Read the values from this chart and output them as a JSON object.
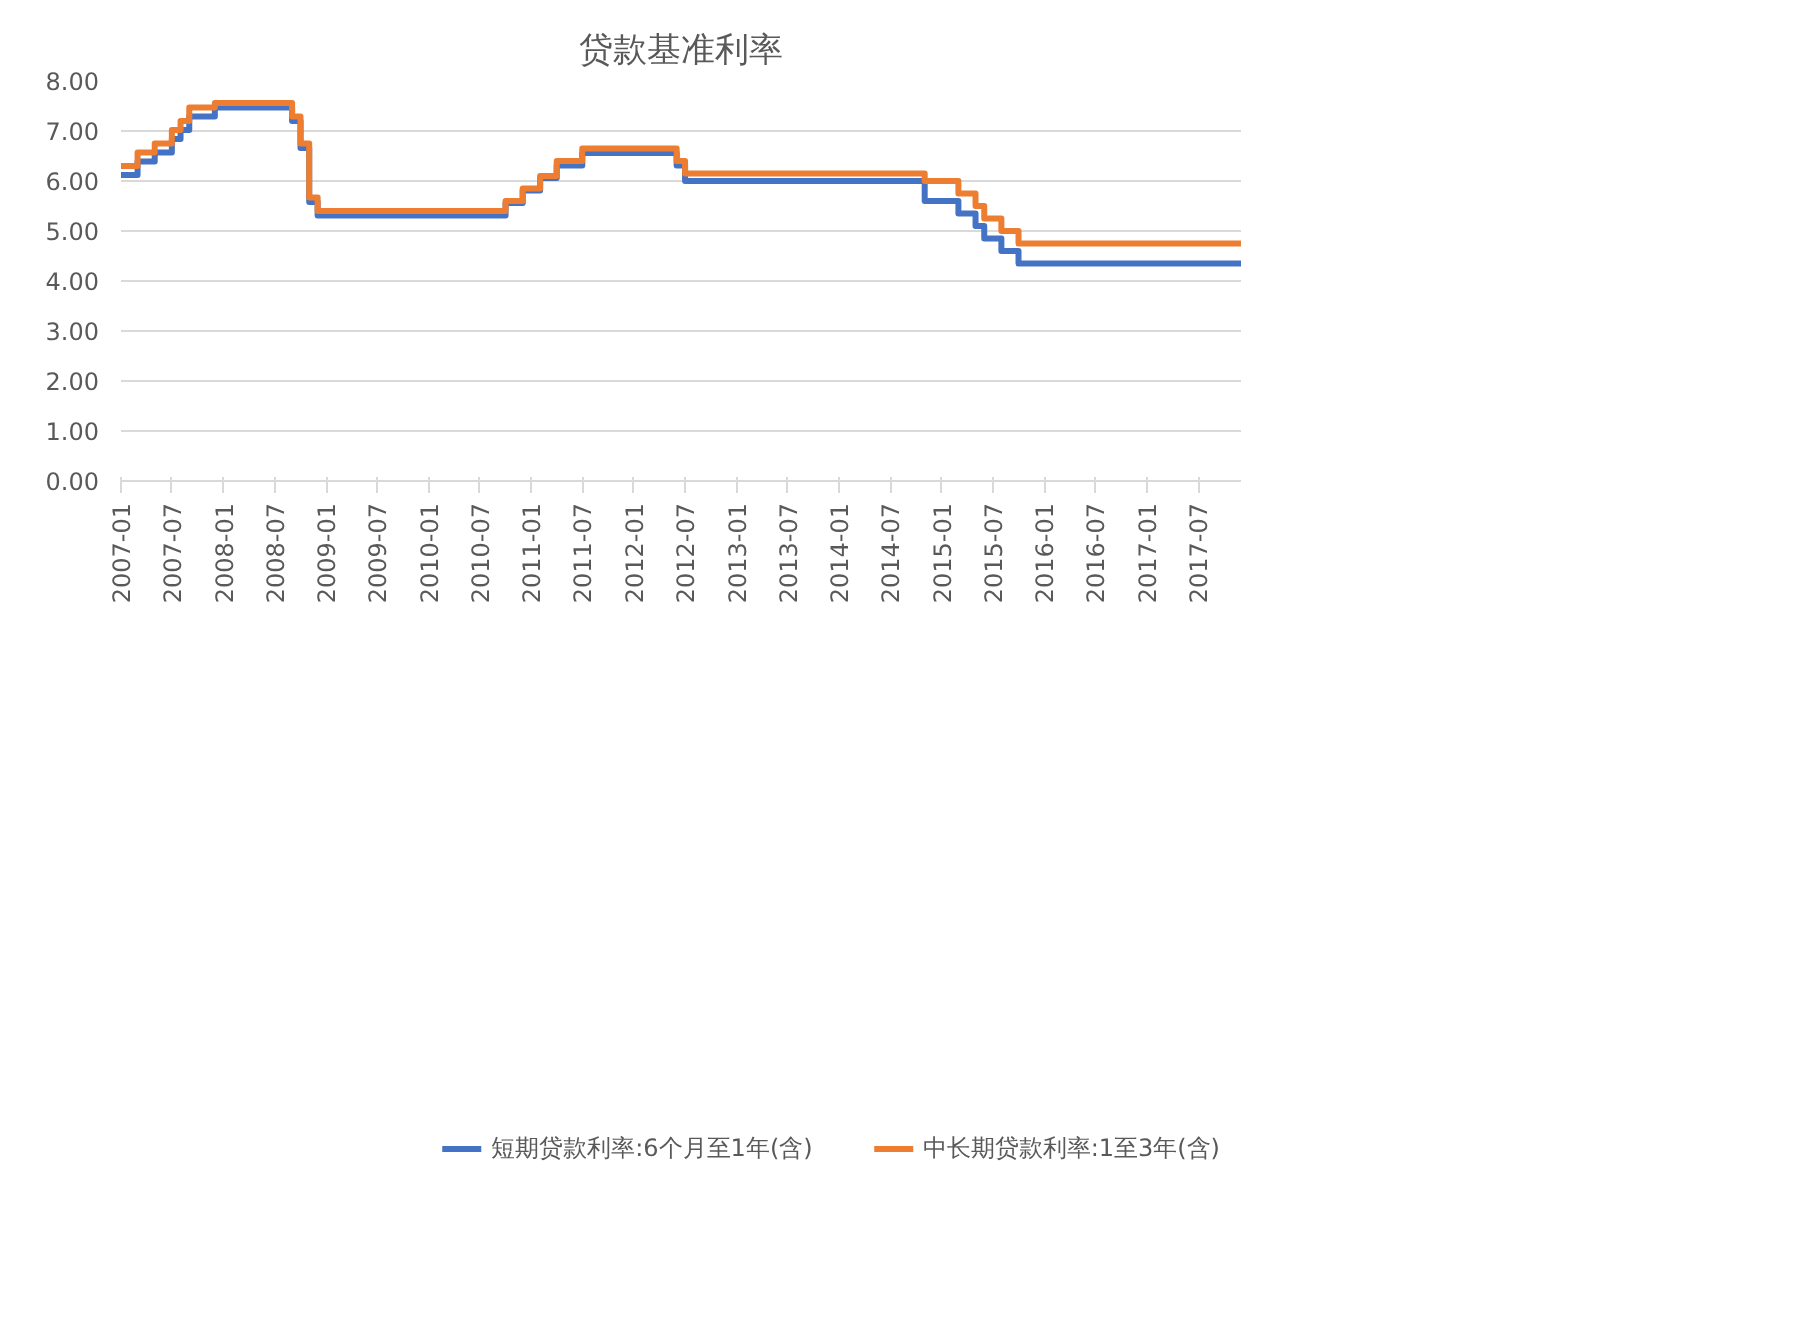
{
  "chart_data": {
    "type": "step",
    "title": "贷款基准利率",
    "series": [
      {
        "name": "短期贷款利率:6个月至1年(含)",
        "color": "#4472c4",
        "x": [
          "2007-01",
          "2007-03",
          "2007-05",
          "2007-07",
          "2007-08",
          "2007-09",
          "2007-12",
          "2008-09",
          "2008-10",
          "2008-11",
          "2008-12",
          "2010-10",
          "2010-12",
          "2011-02",
          "2011-04",
          "2011-07",
          "2012-06",
          "2012-07",
          "2014-11",
          "2015-03",
          "2015-05",
          "2015-06",
          "2015-08",
          "2015-10",
          "2017-12"
        ],
        "values": [
          6.12,
          6.39,
          6.57,
          6.84,
          7.02,
          7.29,
          7.47,
          7.2,
          6.66,
          5.58,
          5.31,
          5.56,
          5.81,
          6.06,
          6.31,
          6.56,
          6.31,
          6.0,
          5.6,
          5.35,
          5.1,
          4.85,
          4.6,
          4.35,
          4.35
        ]
      },
      {
        "name": "中长期贷款利率:1至3年(含)",
        "color": "#ed7d31",
        "x": [
          "2007-01",
          "2007-03",
          "2007-05",
          "2007-07",
          "2007-08",
          "2007-09",
          "2007-12",
          "2008-09",
          "2008-10",
          "2008-11",
          "2008-12",
          "2010-10",
          "2010-12",
          "2011-02",
          "2011-04",
          "2011-07",
          "2012-06",
          "2012-07",
          "2014-11",
          "2015-03",
          "2015-05",
          "2015-06",
          "2015-08",
          "2015-10",
          "2017-12"
        ],
        "values": [
          6.3,
          6.57,
          6.75,
          7.02,
          7.2,
          7.47,
          7.56,
          7.29,
          6.75,
          5.67,
          5.4,
          5.6,
          5.85,
          6.1,
          6.4,
          6.65,
          6.4,
          6.15,
          6.0,
          5.75,
          5.5,
          5.25,
          5.0,
          4.75,
          4.75
        ]
      }
    ],
    "xlim": [
      "2007-01",
      "2017-12"
    ],
    "xticks": [
      {
        "value": "2007-01",
        "label": "2007-01"
      },
      {
        "value": "2007-07",
        "label": "2007-07"
      },
      {
        "value": "2008-01",
        "label": "2008-01"
      },
      {
        "value": "2008-07",
        "label": "2008-07"
      },
      {
        "value": "2009-01",
        "label": "2009-01"
      },
      {
        "value": "2009-07",
        "label": "2009-07"
      },
      {
        "value": "2010-01",
        "label": "2010-01"
      },
      {
        "value": "2010-07",
        "label": "2010-07"
      },
      {
        "value": "2011-01",
        "label": "2011-01"
      },
      {
        "value": "2011-07",
        "label": "2011-07"
      },
      {
        "value": "2012-01",
        "label": "2012-01"
      },
      {
        "value": "2012-07",
        "label": "2012-07"
      },
      {
        "value": "2013-01",
        "label": "2013-01"
      },
      {
        "value": "2013-07",
        "label": "2013-07"
      },
      {
        "value": "2014-01",
        "label": "2014-01"
      },
      {
        "value": "2014-07",
        "label": "2014-07"
      },
      {
        "value": "2015-01",
        "label": "2015-01"
      },
      {
        "value": "2015-07",
        "label": "2015-07"
      },
      {
        "value": "2016-01",
        "label": "2016-01"
      },
      {
        "value": "2016-07",
        "label": "2016-07"
      },
      {
        "value": "2017-01",
        "label": "2017-01"
      },
      {
        "value": "2017-07",
        "label": "2017-07"
      }
    ],
    "ylim": [
      0,
      8
    ],
    "yticks": [
      {
        "value": 0,
        "label": "0.00"
      },
      {
        "value": 1,
        "label": "1.00"
      },
      {
        "value": 2,
        "label": "2.00"
      },
      {
        "value": 3,
        "label": "3.00"
      },
      {
        "value": 4,
        "label": "4.00"
      },
      {
        "value": 5,
        "label": "5.00"
      },
      {
        "value": 6,
        "label": "6.00"
      },
      {
        "value": 7,
        "label": "7.00"
      },
      {
        "value": 8,
        "label": "8.00"
      }
    ],
    "grid": "y",
    "legend": "bottom"
  }
}
